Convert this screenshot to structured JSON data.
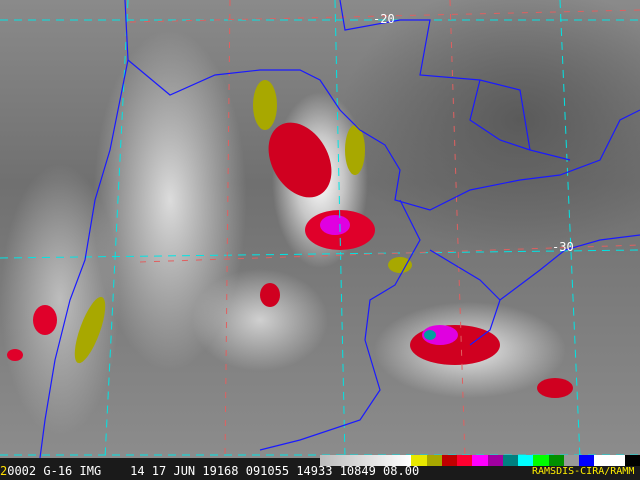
{
  "image_type": "GOES-16 infrared enhanced satellite image, South America",
  "latitude_labels": [
    "-20",
    "-30"
  ],
  "header": {
    "frame_number": "2",
    "sequence": "0002",
    "satellite": "G-16",
    "product": "IMG",
    "band": "14",
    "date": "17 JUN 19168",
    "time": "091055",
    "line": "14933",
    "element": "10849",
    "resolution": "08.00",
    "credit": "RAMSDIS-CIRA/RAMM"
  },
  "colors": {
    "borders": "#1a1aff",
    "state_borders": "#c8c800",
    "latlon_grid_a": "#00e5e5",
    "latlon_grid_b": "#e06060",
    "enhancement": [
      "#e8e800",
      "#a8a800",
      "#c00000",
      "#ff0030",
      "#ff00ff",
      "#a000a0",
      "#008080",
      "#00ffff",
      "#00ff00",
      "#009000",
      "#999999",
      "#0000ff",
      "#ffffff",
      "#000000"
    ]
  }
}
